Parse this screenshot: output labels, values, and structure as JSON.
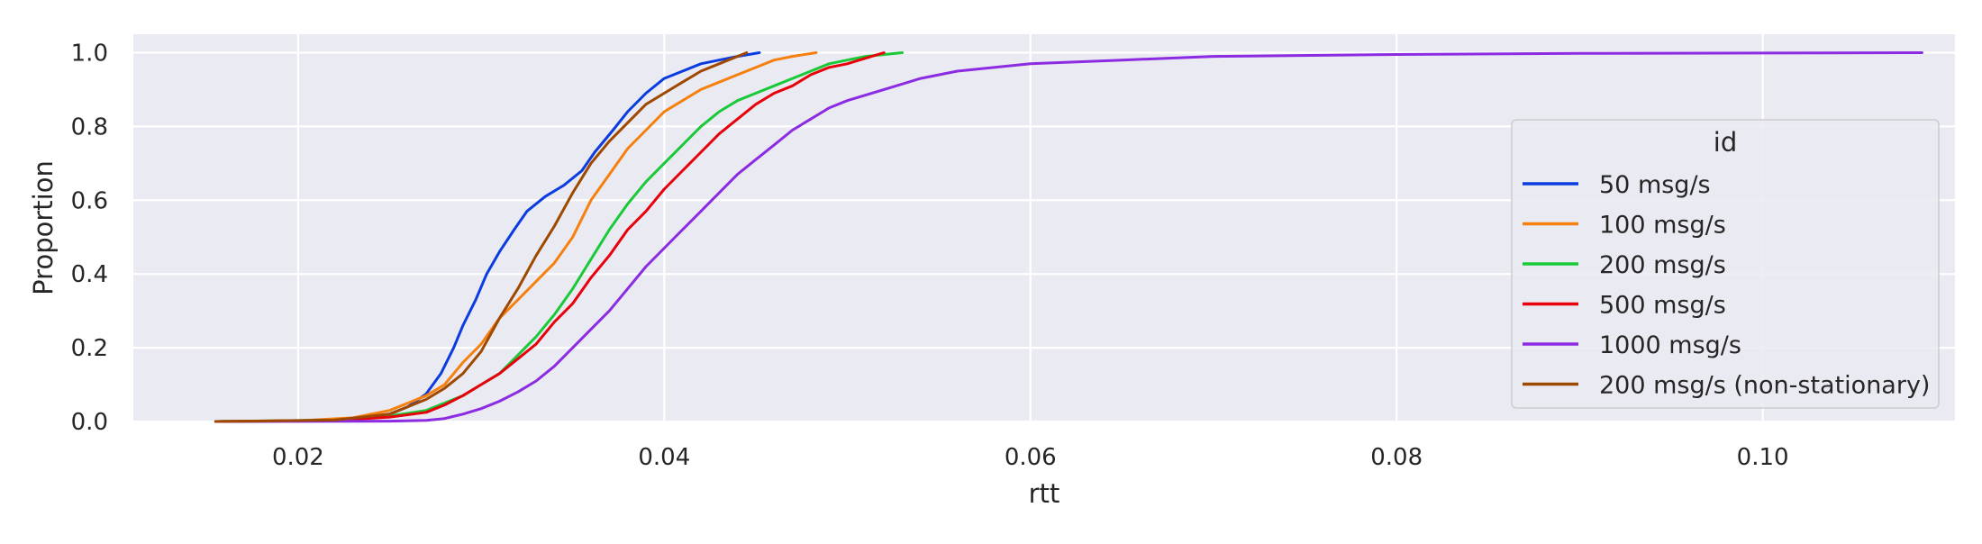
{
  "chart_data": {
    "type": "line",
    "title": "",
    "xlabel": "rtt",
    "ylabel": "Proportion",
    "xlim": [
      0.011,
      0.1105
    ],
    "ylim": [
      0,
      1.05
    ],
    "xticks": [
      0.02,
      0.04,
      0.06,
      0.08,
      0.1
    ],
    "xtick_labels": [
      "0.02",
      "0.04",
      "0.06",
      "0.08",
      "0.10"
    ],
    "yticks": [
      0,
      0.2,
      0.4,
      0.6,
      0.8,
      1.0
    ],
    "ytick_labels": [
      "0.0",
      "0.2",
      "0.4",
      "0.6",
      "0.8",
      "1.0"
    ],
    "grid": true,
    "background": "#eaeaf2",
    "legend": {
      "title": "id",
      "position": "center-right"
    },
    "series": [
      {
        "name": "50 msg/s",
        "color": "#0a3ce0",
        "points": [
          [
            0.0155,
            0
          ],
          [
            0.02,
            0.002
          ],
          [
            0.023,
            0.008
          ],
          [
            0.025,
            0.02
          ],
          [
            0.026,
            0.04
          ],
          [
            0.027,
            0.075
          ],
          [
            0.0278,
            0.13
          ],
          [
            0.0285,
            0.2
          ],
          [
            0.029,
            0.26
          ],
          [
            0.0297,
            0.33
          ],
          [
            0.0303,
            0.4
          ],
          [
            0.031,
            0.46
          ],
          [
            0.0318,
            0.52
          ],
          [
            0.0325,
            0.57
          ],
          [
            0.0335,
            0.61
          ],
          [
            0.0345,
            0.64
          ],
          [
            0.0355,
            0.68
          ],
          [
            0.0362,
            0.73
          ],
          [
            0.0372,
            0.79
          ],
          [
            0.038,
            0.84
          ],
          [
            0.039,
            0.89
          ],
          [
            0.04,
            0.93
          ],
          [
            0.041,
            0.95
          ],
          [
            0.042,
            0.97
          ],
          [
            0.043,
            0.98
          ],
          [
            0.044,
            0.99
          ],
          [
            0.0452,
            1.0
          ]
        ]
      },
      {
        "name": "100 msg/s",
        "color": "#f6800e",
        "points": [
          [
            0.0155,
            0
          ],
          [
            0.02,
            0.002
          ],
          [
            0.023,
            0.01
          ],
          [
            0.025,
            0.03
          ],
          [
            0.026,
            0.05
          ],
          [
            0.027,
            0.07
          ],
          [
            0.028,
            0.1
          ],
          [
            0.029,
            0.16
          ],
          [
            0.03,
            0.21
          ],
          [
            0.031,
            0.28
          ],
          [
            0.032,
            0.33
          ],
          [
            0.033,
            0.38
          ],
          [
            0.034,
            0.43
          ],
          [
            0.035,
            0.5
          ],
          [
            0.036,
            0.6
          ],
          [
            0.037,
            0.67
          ],
          [
            0.038,
            0.74
          ],
          [
            0.039,
            0.79
          ],
          [
            0.04,
            0.84
          ],
          [
            0.041,
            0.87
          ],
          [
            0.042,
            0.9
          ],
          [
            0.043,
            0.92
          ],
          [
            0.044,
            0.94
          ],
          [
            0.045,
            0.96
          ],
          [
            0.046,
            0.98
          ],
          [
            0.047,
            0.99
          ],
          [
            0.0483,
            1.0
          ]
        ]
      },
      {
        "name": "200 msg/s",
        "color": "#1ac938",
        "points": [
          [
            0.0155,
            0
          ],
          [
            0.022,
            0.004
          ],
          [
            0.025,
            0.015
          ],
          [
            0.027,
            0.03
          ],
          [
            0.029,
            0.07
          ],
          [
            0.03,
            0.1
          ],
          [
            0.031,
            0.13
          ],
          [
            0.032,
            0.18
          ],
          [
            0.033,
            0.23
          ],
          [
            0.034,
            0.29
          ],
          [
            0.035,
            0.36
          ],
          [
            0.036,
            0.44
          ],
          [
            0.037,
            0.52
          ],
          [
            0.038,
            0.59
          ],
          [
            0.039,
            0.65
          ],
          [
            0.04,
            0.7
          ],
          [
            0.041,
            0.75
          ],
          [
            0.042,
            0.8
          ],
          [
            0.043,
            0.84
          ],
          [
            0.044,
            0.87
          ],
          [
            0.045,
            0.89
          ],
          [
            0.046,
            0.91
          ],
          [
            0.047,
            0.93
          ],
          [
            0.048,
            0.95
          ],
          [
            0.049,
            0.97
          ],
          [
            0.05,
            0.98
          ],
          [
            0.051,
            0.99
          ],
          [
            0.053,
            1.0
          ]
        ]
      },
      {
        "name": "500 msg/s",
        "color": "#e8000b",
        "points": [
          [
            0.0155,
            0
          ],
          [
            0.022,
            0.003
          ],
          [
            0.025,
            0.012
          ],
          [
            0.027,
            0.025
          ],
          [
            0.028,
            0.045
          ],
          [
            0.029,
            0.07
          ],
          [
            0.03,
            0.1
          ],
          [
            0.031,
            0.13
          ],
          [
            0.032,
            0.17
          ],
          [
            0.033,
            0.21
          ],
          [
            0.034,
            0.27
          ],
          [
            0.035,
            0.32
          ],
          [
            0.036,
            0.39
          ],
          [
            0.037,
            0.45
          ],
          [
            0.038,
            0.52
          ],
          [
            0.039,
            0.57
          ],
          [
            0.04,
            0.63
          ],
          [
            0.041,
            0.68
          ],
          [
            0.042,
            0.73
          ],
          [
            0.043,
            0.78
          ],
          [
            0.044,
            0.82
          ],
          [
            0.045,
            0.86
          ],
          [
            0.046,
            0.89
          ],
          [
            0.047,
            0.91
          ],
          [
            0.048,
            0.94
          ],
          [
            0.049,
            0.96
          ],
          [
            0.05,
            0.97
          ],
          [
            0.051,
            0.985
          ],
          [
            0.052,
            1.0
          ]
        ]
      },
      {
        "name": "1000 msg/s",
        "color": "#8b2be2",
        "points": [
          [
            0.0155,
            0
          ],
          [
            0.025,
            0.001
          ],
          [
            0.027,
            0.003
          ],
          [
            0.028,
            0.008
          ],
          [
            0.029,
            0.02
          ],
          [
            0.03,
            0.035
          ],
          [
            0.031,
            0.055
          ],
          [
            0.032,
            0.08
          ],
          [
            0.033,
            0.11
          ],
          [
            0.034,
            0.15
          ],
          [
            0.035,
            0.2
          ],
          [
            0.036,
            0.25
          ],
          [
            0.037,
            0.3
          ],
          [
            0.038,
            0.36
          ],
          [
            0.039,
            0.42
          ],
          [
            0.04,
            0.47
          ],
          [
            0.041,
            0.52
          ],
          [
            0.042,
            0.57
          ],
          [
            0.043,
            0.62
          ],
          [
            0.044,
            0.67
          ],
          [
            0.045,
            0.71
          ],
          [
            0.046,
            0.75
          ],
          [
            0.047,
            0.79
          ],
          [
            0.048,
            0.82
          ],
          [
            0.049,
            0.85
          ],
          [
            0.05,
            0.87
          ],
          [
            0.052,
            0.9
          ],
          [
            0.054,
            0.93
          ],
          [
            0.056,
            0.95
          ],
          [
            0.058,
            0.96
          ],
          [
            0.06,
            0.97
          ],
          [
            0.065,
            0.98
          ],
          [
            0.07,
            0.99
          ],
          [
            0.08,
            0.995
          ],
          [
            0.09,
            0.998
          ],
          [
            0.1,
            0.999
          ],
          [
            0.1087,
            1.0
          ]
        ]
      },
      {
        "name": "200 msg/s (non-stationary)",
        "color": "#9f4800",
        "points": [
          [
            0.0155,
            0
          ],
          [
            0.022,
            0.004
          ],
          [
            0.025,
            0.02
          ],
          [
            0.027,
            0.06
          ],
          [
            0.028,
            0.09
          ],
          [
            0.029,
            0.13
          ],
          [
            0.03,
            0.19
          ],
          [
            0.031,
            0.28
          ],
          [
            0.032,
            0.36
          ],
          [
            0.033,
            0.45
          ],
          [
            0.034,
            0.53
          ],
          [
            0.035,
            0.62
          ],
          [
            0.036,
            0.7
          ],
          [
            0.037,
            0.76
          ],
          [
            0.038,
            0.81
          ],
          [
            0.039,
            0.86
          ],
          [
            0.04,
            0.89
          ],
          [
            0.041,
            0.92
          ],
          [
            0.042,
            0.95
          ],
          [
            0.043,
            0.97
          ],
          [
            0.044,
            0.99
          ],
          [
            0.0445,
            1.0
          ]
        ]
      }
    ]
  }
}
